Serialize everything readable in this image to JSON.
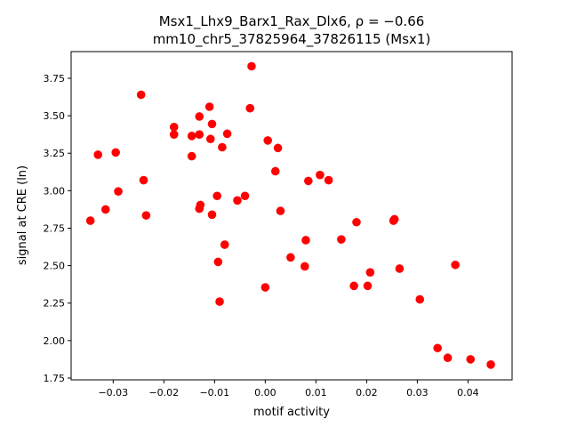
{
  "chart_data": {
    "type": "scatter",
    "title_line1": "Msx1_Lhx9_Barx1_Rax_Dlx6, ρ = −0.66",
    "title_line2": "mm10_chr5_37825964_37826115 (Msx1)",
    "xlabel": "motif activity",
    "ylabel": "signal at CRE (ln)",
    "xlim": [
      -0.0383,
      0.0487
    ],
    "ylim": [
      1.738,
      3.928
    ],
    "xticks": [
      -0.03,
      -0.02,
      -0.01,
      0.0,
      0.01,
      0.02,
      0.03,
      0.04
    ],
    "xtick_labels": [
      "−0.03",
      "−0.02",
      "−0.01",
      "0.00",
      "0.01",
      "0.02",
      "0.03",
      "0.04"
    ],
    "yticks": [
      1.75,
      2.0,
      2.25,
      2.5,
      2.75,
      3.0,
      3.25,
      3.5,
      3.75
    ],
    "ytick_labels": [
      "1.75",
      "2.00",
      "2.25",
      "2.50",
      "2.75",
      "3.00",
      "3.25",
      "3.50",
      "3.75"
    ],
    "grid": false,
    "marker_color": "#ff0000",
    "points": [
      [
        -0.0345,
        2.8
      ],
      [
        -0.033,
        3.24
      ],
      [
        -0.0315,
        2.875
      ],
      [
        -0.0295,
        3.255
      ],
      [
        -0.029,
        2.995
      ],
      [
        -0.0245,
        3.64
      ],
      [
        -0.024,
        3.07
      ],
      [
        -0.0235,
        2.835
      ],
      [
        -0.018,
        3.425
      ],
      [
        -0.018,
        3.375
      ],
      [
        -0.0145,
        3.365
      ],
      [
        -0.0145,
        3.23
      ],
      [
        -0.013,
        3.375
      ],
      [
        -0.013,
        3.495
      ],
      [
        -0.013,
        2.88
      ],
      [
        -0.0128,
        2.905
      ],
      [
        -0.011,
        3.56
      ],
      [
        -0.0108,
        3.345
      ],
      [
        -0.0105,
        3.445
      ],
      [
        -0.0105,
        2.84
      ],
      [
        -0.0095,
        2.965
      ],
      [
        -0.0093,
        2.525
      ],
      [
        -0.009,
        2.26
      ],
      [
        -0.0085,
        3.29
      ],
      [
        -0.008,
        2.64
      ],
      [
        -0.0075,
        3.38
      ],
      [
        -0.0055,
        2.935
      ],
      [
        -0.004,
        2.965
      ],
      [
        -0.003,
        3.55
      ],
      [
        -0.0027,
        3.83
      ],
      [
        0.0,
        2.355
      ],
      [
        0.0005,
        3.335
      ],
      [
        0.002,
        3.13
      ],
      [
        0.0025,
        3.285
      ],
      [
        0.003,
        2.865
      ],
      [
        0.005,
        2.555
      ],
      [
        0.0078,
        2.495
      ],
      [
        0.008,
        2.67
      ],
      [
        0.0085,
        3.065
      ],
      [
        0.0108,
        3.105
      ],
      [
        0.0125,
        3.07
      ],
      [
        0.015,
        2.675
      ],
      [
        0.0175,
        2.365
      ],
      [
        0.018,
        2.79
      ],
      [
        0.0202,
        2.365
      ],
      [
        0.0207,
        2.455
      ],
      [
        0.0253,
        2.8
      ],
      [
        0.0255,
        2.81
      ],
      [
        0.0265,
        2.48
      ],
      [
        0.0305,
        2.275
      ],
      [
        0.034,
        1.95
      ],
      [
        0.036,
        1.885
      ],
      [
        0.0375,
        2.505
      ],
      [
        0.0405,
        1.875
      ],
      [
        0.0445,
        1.84
      ]
    ]
  }
}
